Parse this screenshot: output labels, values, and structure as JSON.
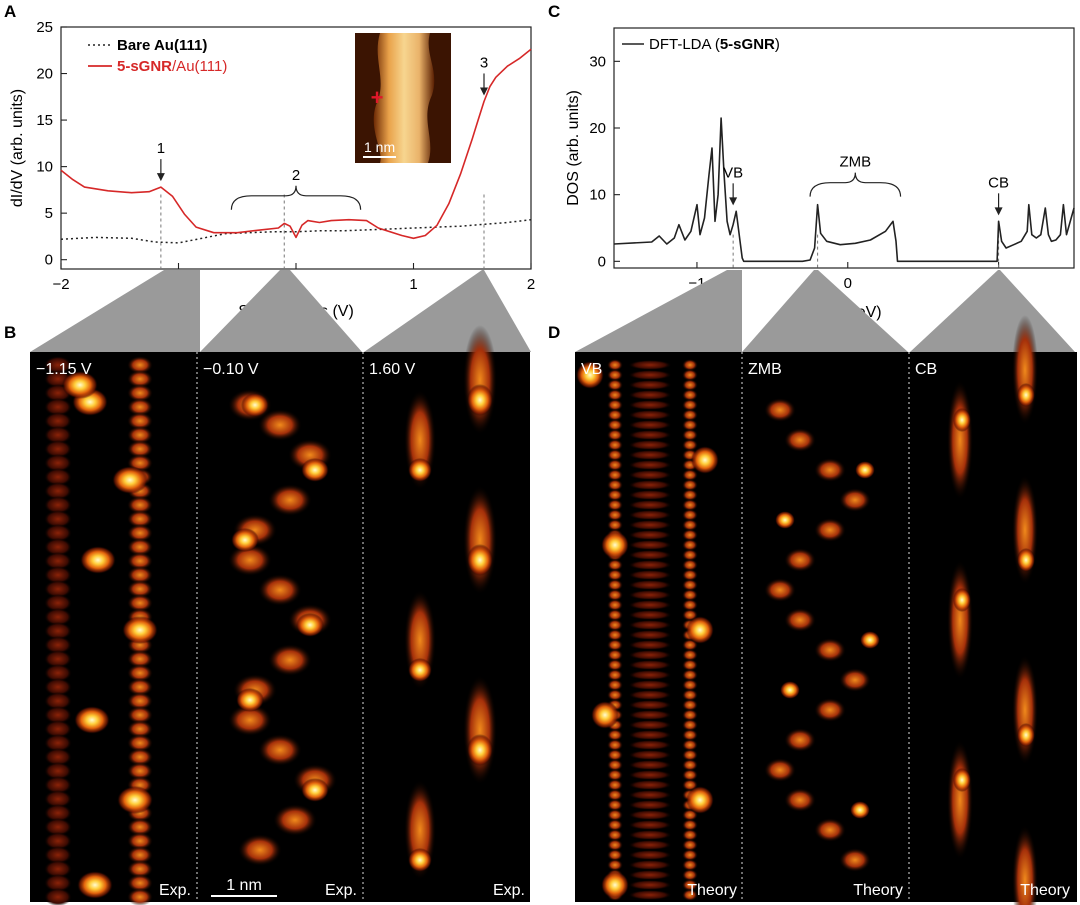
{
  "panel_labels": {
    "a": "A",
    "b": "B",
    "c": "C",
    "d": "D"
  },
  "colors": {
    "exp_red": "#d62828",
    "bare_black": "#222222",
    "grey_funnel": "#9a9a9a",
    "panel_bg": "#000000"
  },
  "chart_data": [
    {
      "id": "A",
      "type": "line",
      "xlabel": "Sample Bias (V)",
      "ylabel": "dI/dV (arb. units)",
      "xlim": [
        -2,
        2
      ],
      "ylim": [
        -1,
        25
      ],
      "xticks": [
        "−2",
        "−1",
        "0",
        "1",
        "2"
      ],
      "yticks": [
        "0",
        "5",
        "10",
        "15",
        "20",
        "25"
      ],
      "legend": {
        "placement": "top-left",
        "bare_bold": "Bare Au(111)",
        "sgnr_bold": "5-sGNR",
        "sgnr_rest": "/Au(111)"
      },
      "series": [
        {
          "name": "Bare Au(111)",
          "style": "dotted",
          "color": "#222222",
          "x": [
            -2.0,
            -1.7,
            -1.4,
            -1.2,
            -1.0,
            -0.8,
            -0.6,
            -0.4,
            -0.2,
            0.0,
            0.2,
            0.4,
            0.6,
            0.8,
            1.0,
            1.2,
            1.4,
            1.6,
            1.8,
            2.0
          ],
          "y": [
            2.2,
            2.4,
            2.3,
            1.9,
            1.8,
            2.3,
            2.8,
            2.9,
            3.0,
            3.0,
            3.1,
            3.1,
            3.2,
            3.3,
            3.4,
            3.5,
            3.6,
            3.8,
            4.0,
            4.3
          ]
        },
        {
          "name": "5-sGNR/Au(111)",
          "style": "solid",
          "color": "#d62828",
          "x": [
            -2.0,
            -1.9,
            -1.8,
            -1.6,
            -1.4,
            -1.25,
            -1.15,
            -1.05,
            -0.95,
            -0.85,
            -0.7,
            -0.5,
            -0.3,
            -0.15,
            -0.1,
            -0.05,
            0.0,
            0.05,
            0.1,
            0.2,
            0.3,
            0.45,
            0.6,
            0.7,
            0.9,
            1.0,
            1.1,
            1.2,
            1.3,
            1.4,
            1.5,
            1.55,
            1.6,
            1.65,
            1.7,
            1.8,
            1.9,
            2.0
          ],
          "y": [
            9.6,
            8.6,
            7.8,
            7.4,
            7.2,
            7.3,
            7.8,
            6.8,
            4.9,
            3.5,
            2.9,
            2.9,
            3.2,
            3.4,
            3.9,
            3.6,
            2.4,
            3.7,
            4.2,
            4.0,
            4.2,
            4.3,
            4.2,
            3.4,
            2.6,
            2.3,
            2.6,
            3.7,
            6.0,
            9.2,
            13.0,
            15.0,
            17.0,
            18.6,
            19.6,
            20.8,
            21.6,
            22.6
          ]
        }
      ],
      "annotations": [
        {
          "text": "1",
          "x": -1.15,
          "y": 7.8,
          "arrow": "down"
        },
        {
          "text": "2",
          "x": 0.0,
          "y": 4.5,
          "brace": [
            -0.55,
            0.55
          ]
        },
        {
          "text": "3",
          "x": 1.6,
          "y": 17.0,
          "arrow": "down"
        }
      ],
      "dashed_guides": [
        -1.15,
        -0.1,
        1.6
      ],
      "inset": {
        "scale_label": "1 nm",
        "marker": "+"
      }
    },
    {
      "id": "C",
      "type": "line",
      "title": "",
      "xlabel_main": "E",
      "xlabel_sub": "F",
      "xlabel_unit": "(eV)",
      "ylabel": "DOS (arb. units)",
      "xlim": [
        -1.55,
        1.5
      ],
      "ylim": [
        -1,
        35
      ],
      "xticks": [
        "−1",
        "0",
        "1"
      ],
      "yticks": [
        "0",
        "10",
        "20",
        "30"
      ],
      "legend": {
        "placement": "top-left",
        "text": "DFT-LDA (",
        "bold": "5-sGNR",
        "tail": ")"
      },
      "series": [
        {
          "name": "DFT-LDA (5-sGNR)",
          "color": "#222222",
          "x": [
            -1.55,
            -1.3,
            -1.25,
            -1.2,
            -1.15,
            -1.12,
            -1.08,
            -1.04,
            -1.0,
            -0.98,
            -0.95,
            -0.92,
            -0.9,
            -0.88,
            -0.86,
            -0.84,
            -0.82,
            -0.8,
            -0.78,
            -0.76,
            -0.74,
            -0.72,
            -0.7,
            -0.69,
            -0.68,
            -0.66,
            -0.6,
            -0.3,
            -0.25,
            -0.22,
            -0.2,
            -0.18,
            -0.14,
            -0.05,
            0.05,
            0.15,
            0.25,
            0.3,
            0.32,
            0.33,
            0.35,
            0.99,
            1.0,
            1.02,
            1.05,
            1.1,
            1.15,
            1.19,
            1.2,
            1.22,
            1.25,
            1.28,
            1.31,
            1.33,
            1.35,
            1.38,
            1.41,
            1.43,
            1.45,
            1.5
          ],
          "y": [
            2.6,
            2.9,
            3.8,
            2.6,
            3.5,
            5.5,
            3.2,
            4.5,
            8.5,
            4.0,
            6.5,
            13.0,
            17.0,
            6.0,
            10.0,
            21.5,
            13.0,
            6.0,
            4.0,
            5.5,
            7.5,
            4.0,
            0.5,
            0.0,
            0.0,
            0.0,
            0.0,
            0.0,
            0.2,
            2.0,
            8.5,
            4.2,
            3.0,
            2.5,
            2.7,
            3.2,
            4.5,
            6.0,
            3.0,
            0.0,
            0.0,
            0.0,
            6.0,
            3.0,
            2.0,
            2.5,
            3.0,
            4.5,
            8.5,
            4.0,
            3.5,
            4.0,
            8.0,
            4.0,
            3.0,
            3.2,
            4.0,
            8.5,
            4.0,
            8.0
          ]
        }
      ],
      "annotations": [
        {
          "text": "VB",
          "x": -0.76,
          "y": 7.5,
          "arrow": "down"
        },
        {
          "text": "ZMB",
          "x": 0.03,
          "y": 8.5,
          "brace": [
            -0.25,
            0.35
          ]
        },
        {
          "text": "CB",
          "x": 1.0,
          "y": 6.0,
          "arrow": "down"
        }
      ],
      "dashed_guides": [
        -0.76,
        -0.2,
        1.0
      ]
    }
  ],
  "maps_b": {
    "panels": [
      {
        "label": "−1.15 V",
        "corner": "Exp."
      },
      {
        "label": "−0.10 V",
        "corner": "Exp."
      },
      {
        "label": "1.60 V",
        "corner": "Exp."
      }
    ],
    "scale_label": "1 nm"
  },
  "maps_d": {
    "panels": [
      {
        "label": "VB",
        "corner": "Theory"
      },
      {
        "label": "ZMB",
        "corner": "Theory"
      },
      {
        "label": "CB",
        "corner": "Theory"
      }
    ]
  }
}
